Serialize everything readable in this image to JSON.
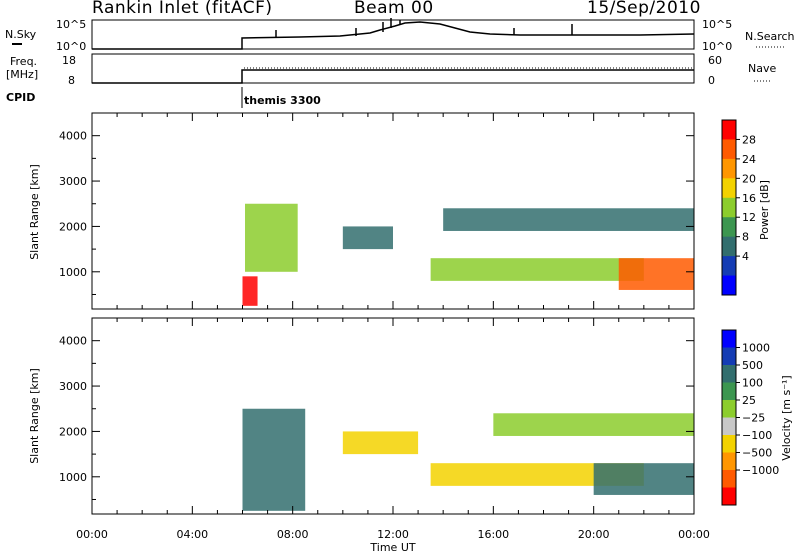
{
  "header": {
    "station": "Rankin Inlet (fitACF)",
    "beam": "Beam 00",
    "date": "15/Sep/2010"
  },
  "summary_panels": {
    "nsky_label": "N.Sky",
    "nsky_ticks": [
      "10^5",
      "10^0"
    ],
    "nsearch_label": "N.Search",
    "nsearch_ticks": [
      "10^5",
      "10^0"
    ],
    "freq_label_line1": "Freq.",
    "freq_label_line2": "[MHz]",
    "freq_ticks": [
      "18",
      "8"
    ],
    "nave_label": "Nave",
    "nave_ticks": [
      "60",
      "0"
    ],
    "cpid_label": "CPID",
    "cpid_value": "themis 3300"
  },
  "chart_data": [
    {
      "type": "heatmap",
      "title": "",
      "xlabel": "",
      "ylabel": "Slant Range [km]",
      "colorbar_label": "Power [dB]",
      "colorbar_ticks": [
        "28",
        "24",
        "20",
        "16",
        "12",
        "8",
        "4"
      ],
      "colorbar_colors": [
        "#ff0000",
        "#ff5a00",
        "#ff9600",
        "#f3d200",
        "#8ccd2d",
        "#3c9650",
        "#326e6e",
        "#143cb4",
        "#0000ff"
      ],
      "ytick_labels": [
        "4000",
        "3000",
        "2000",
        "1000"
      ],
      "ylim": [
        180,
        4500
      ],
      "regions": [
        {
          "t": [
            6.0,
            6.6
          ],
          "r": [
            250,
            900
          ],
          "level": 28
        },
        {
          "t": [
            6.1,
            8.2
          ],
          "r": [
            1000,
            2500
          ],
          "level": 15
        },
        {
          "t": [
            10.0,
            12.0
          ],
          "r": [
            1500,
            2000
          ],
          "level": 6
        },
        {
          "t": [
            13.5,
            22.0
          ],
          "r": [
            800,
            1300
          ],
          "level": 14
        },
        {
          "t": [
            14.0,
            24.0
          ],
          "r": [
            1900,
            2400
          ],
          "level": 7
        },
        {
          "t": [
            21.0,
            24.0
          ],
          "r": [
            600,
            1300
          ],
          "level": 26
        }
      ]
    },
    {
      "type": "heatmap",
      "title": "",
      "xlabel": "Time UT",
      "ylabel": "Slant Range [km]",
      "colorbar_label": "Velocity [m s⁻¹]",
      "colorbar_ticks": [
        "1000",
        "500",
        "100",
        "25",
        "−25",
        "−100",
        "−500",
        "−1000"
      ],
      "colorbar_colors": [
        "#0000ff",
        "#143cb4",
        "#326e6e",
        "#3c9650",
        "#8ccd2d",
        "#c8c8c8",
        "#f3d200",
        "#ff9600",
        "#ff5a00",
        "#ff0000"
      ],
      "ytick_labels": [
        "4000",
        "3000",
        "2000",
        "1000"
      ],
      "ylim": [
        180,
        4500
      ],
      "xtick_labels": [
        "00:00",
        "04:00",
        "08:00",
        "12:00",
        "16:00",
        "20:00",
        "00:00"
      ],
      "xlim": [
        0,
        24
      ],
      "regions": [
        {
          "t": [
            6.0,
            8.5
          ],
          "r": [
            250,
            2500
          ],
          "level": 100
        },
        {
          "t": [
            10.0,
            13.0
          ],
          "r": [
            1500,
            2000
          ],
          "level": -500
        },
        {
          "t": [
            13.5,
            22.0
          ],
          "r": [
            800,
            1300
          ],
          "level": -500
        },
        {
          "t": [
            16.0,
            24.0
          ],
          "r": [
            1900,
            2400
          ],
          "level": 0
        },
        {
          "t": [
            20.0,
            24.0
          ],
          "r": [
            600,
            1300
          ],
          "level": 300
        }
      ]
    }
  ]
}
